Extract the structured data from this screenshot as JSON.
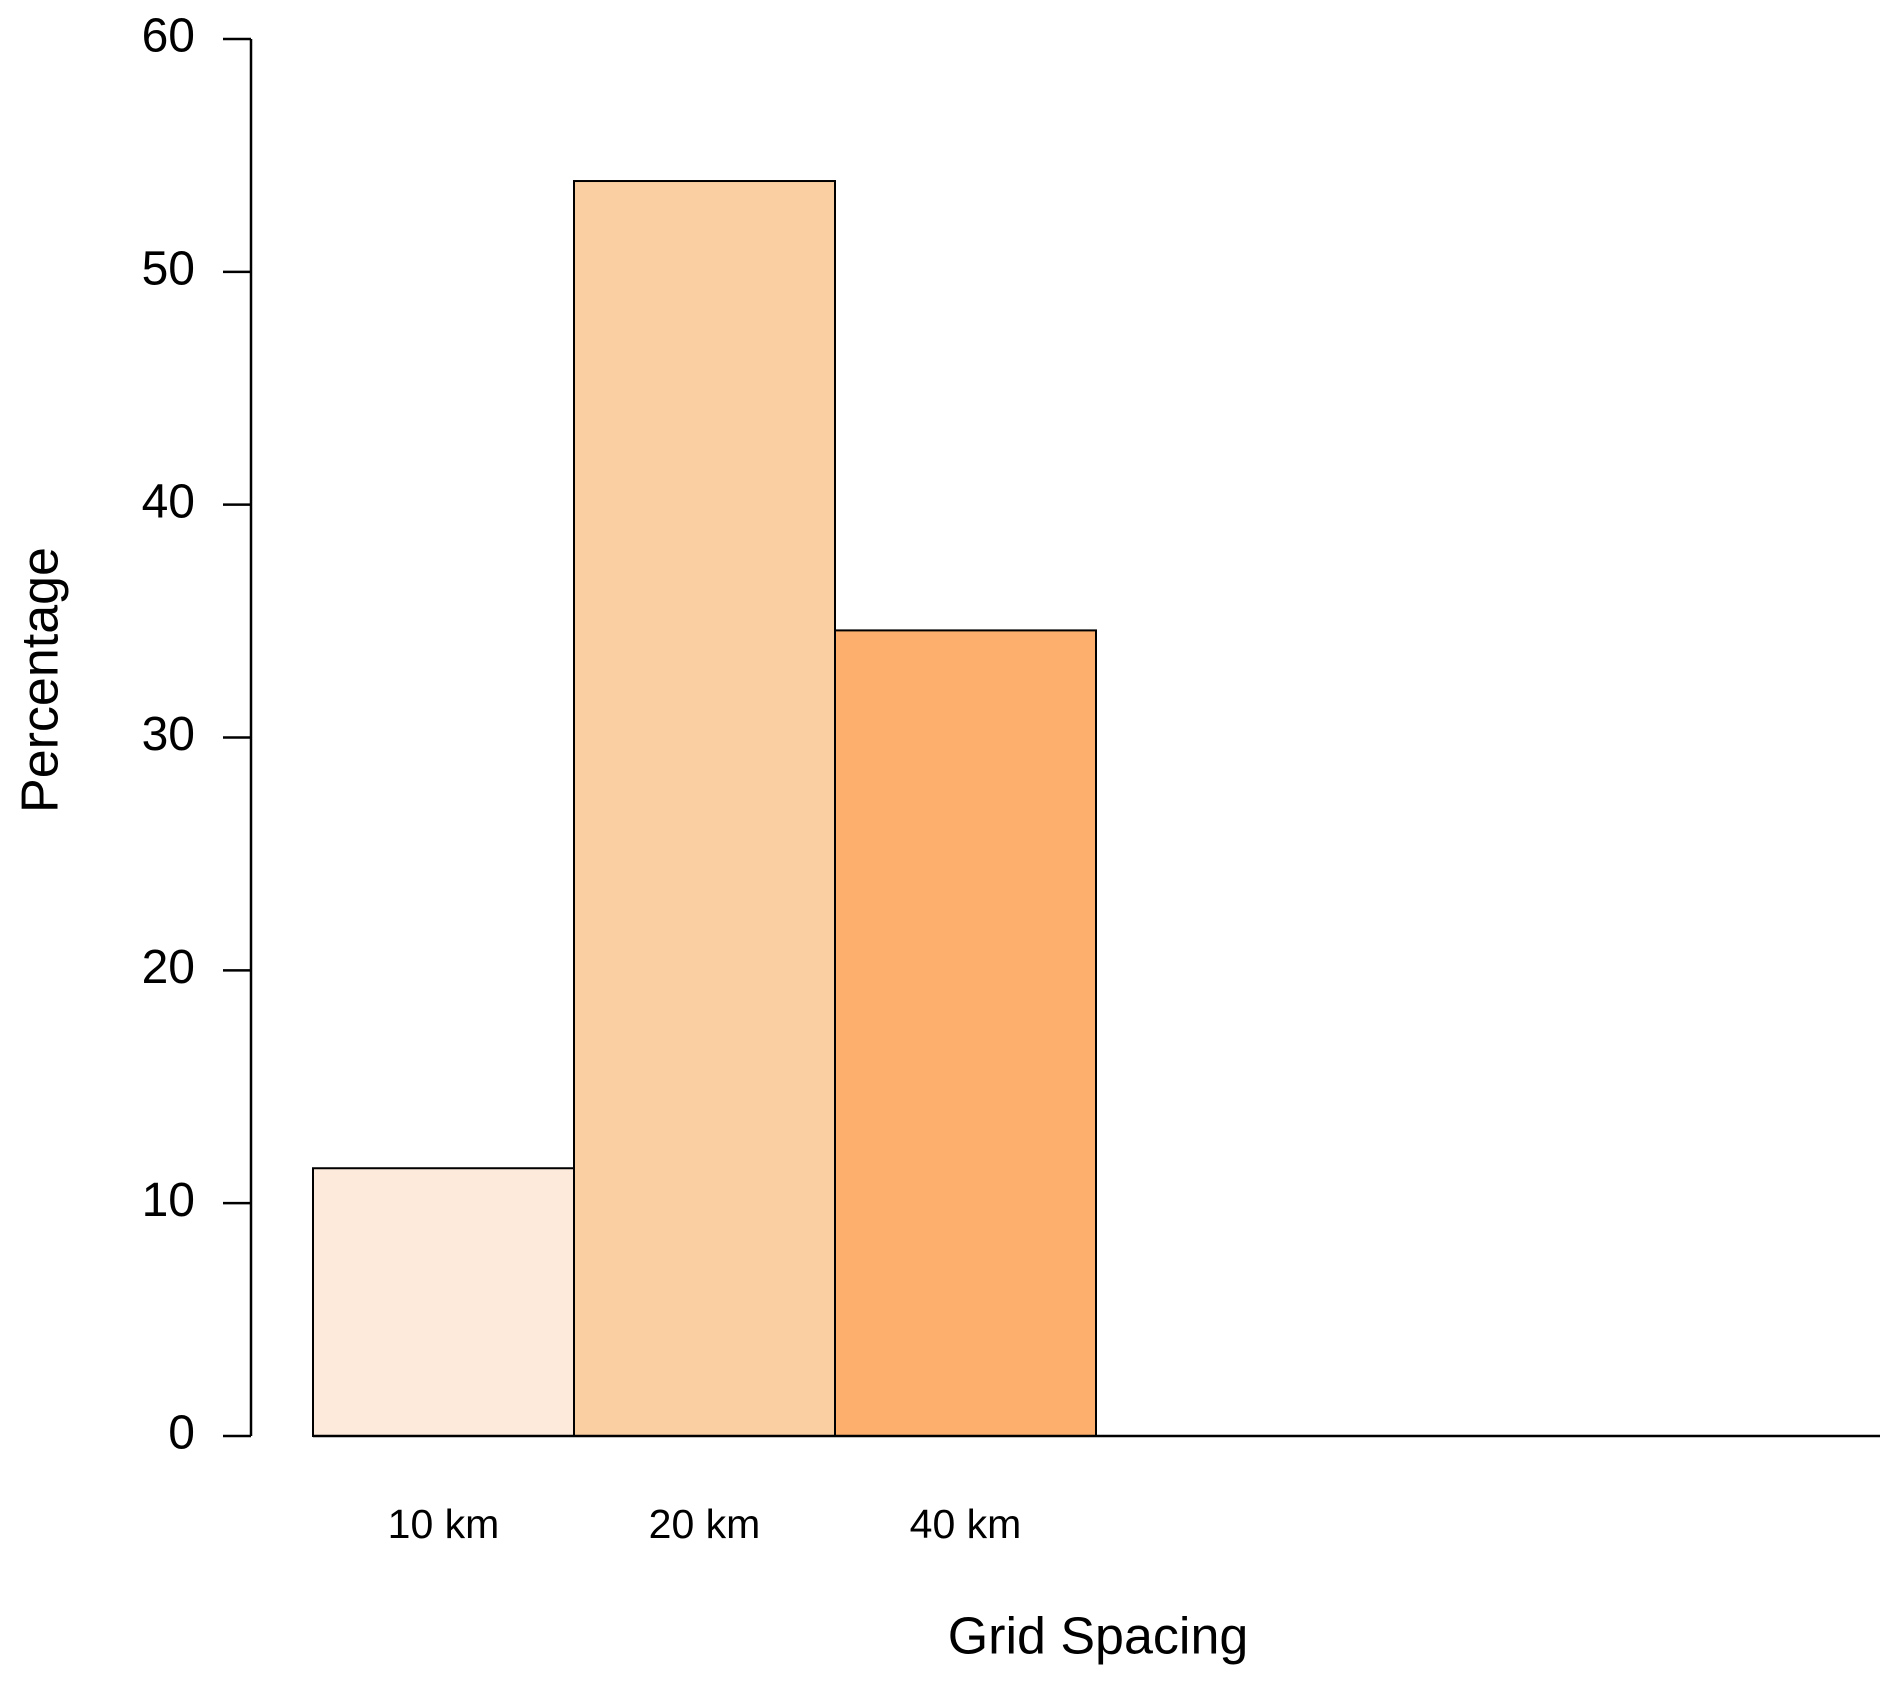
{
  "chart_data": {
    "type": "bar",
    "x_label": "Grid Spacing",
    "y_label": "Percentage",
    "categories": [
      "10 km",
      "20 km",
      "40 km"
    ],
    "values": [
      11.5,
      53.9,
      34.6
    ],
    "colors": [
      "#fdeadb",
      "#fad0a2",
      "#fdb06e"
    ],
    "ylim": [
      0,
      60
    ],
    "yticks": [
      0,
      10,
      20,
      30,
      40,
      50,
      60
    ],
    "grid": false
  }
}
